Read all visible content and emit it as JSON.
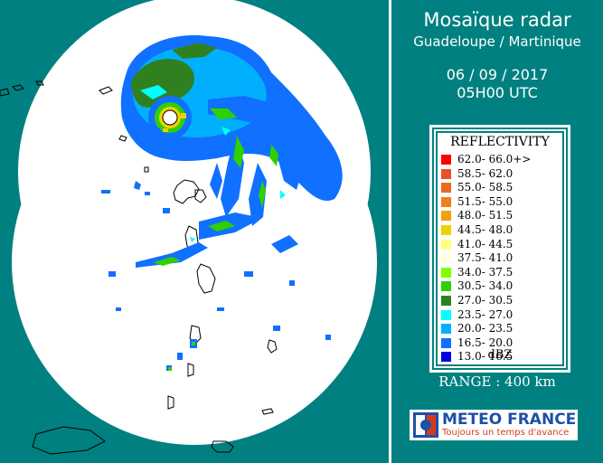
{
  "header": {
    "title": "Mosaïque radar",
    "region": "Guadeloupe / Martinique",
    "date": "06 / 09 / 2017",
    "time": "05H00 UTC"
  },
  "legend": {
    "title": "REFLECTIVITY",
    "unit": "dBZ",
    "rows": [
      {
        "label": "62.0- 66.0+>",
        "color": "#ff0000"
      },
      {
        "label": "58.5- 62.0",
        "color": "#e8502a"
      },
      {
        "label": "55.0- 58.5",
        "color": "#e86a20"
      },
      {
        "label": "51.5- 55.0",
        "color": "#f08018"
      },
      {
        "label": "48.0- 51.5",
        "color": "#f0a010"
      },
      {
        "label": "44.5- 48.0",
        "color": "#f0d000"
      },
      {
        "label": "41.0- 44.5",
        "color": "#ffff80"
      },
      {
        "label": "37.5- 41.0",
        "color": "#ffffe0"
      },
      {
        "label": "34.0- 37.5",
        "color": "#80ff00"
      },
      {
        "label": "30.5- 34.0",
        "color": "#30d000"
      },
      {
        "label": "27.0- 30.5",
        "color": "#308020"
      },
      {
        "label": "23.5- 27.0",
        "color": "#00ffff"
      },
      {
        "label": "20.0- 23.5",
        "color": "#00b0ff"
      },
      {
        "label": "16.5- 20.0",
        "color": "#1070ff"
      },
      {
        "label": "13.0- 16.5",
        "color": "#0000e0"
      }
    ]
  },
  "range_label": "RANGE : 400 km",
  "logo": {
    "name": "METEO FRANCE",
    "slogan": "Toujours un temps d'avance"
  },
  "colors": {
    "background": "#008080",
    "coverage": "#ffffff"
  }
}
